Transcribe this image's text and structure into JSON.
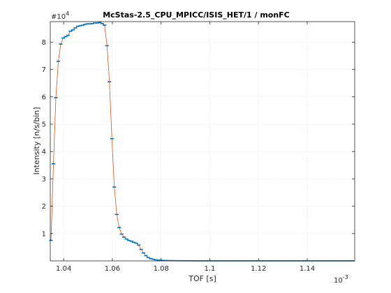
{
  "chart_data": {
    "type": "line",
    "title": "McStas-2.5_CPU_MPICC/ISIS_HET/1 / monFC",
    "xlabel": "TOF [s]",
    "ylabel": "Intensity [n/s/bin]",
    "x_exponent": "10",
    "x_exponent_power": "-3",
    "y_exponent": "#10",
    "y_exponent_power": "4",
    "xlim": [
      1.0345,
      1.1595
    ],
    "ylim": [
      0,
      8.75
    ],
    "x_ticks": [
      1.04,
      1.06,
      1.08,
      1.1,
      1.12,
      1.14
    ],
    "x_tick_labels": [
      "1.04",
      "1.06",
      "1.08",
      "1.1",
      "1.12",
      "1.14"
    ],
    "y_ticks": [
      1,
      2,
      3,
      4,
      5,
      6,
      7,
      8
    ],
    "y_tick_labels": [
      "1",
      "2",
      "3",
      "4",
      "5",
      "6",
      "7",
      "8"
    ],
    "grid": true,
    "colors": {
      "line": "#d95319",
      "markers": "#0072bd",
      "grid": "#dcdcdc"
    },
    "series": [
      {
        "x": [
          1.0348,
          1.0358,
          1.0368,
          1.0378,
          1.0388,
          1.0398,
          1.0408,
          1.0418,
          1.0428,
          1.0438,
          1.0448,
          1.0458,
          1.0468,
          1.0478,
          1.0488,
          1.0498,
          1.0508,
          1.0518,
          1.0528,
          1.0538,
          1.0548,
          1.0558,
          1.0568,
          1.0578,
          1.0588,
          1.0598,
          1.0608,
          1.0618,
          1.0628,
          1.0638,
          1.0648,
          1.0658,
          1.0668,
          1.0678,
          1.0688,
          1.0698,
          1.0708,
          1.0718,
          1.0728,
          1.0738,
          1.0748,
          1.0758,
          1.0768,
          1.0778,
          1.0788,
          1.0798,
          1.0808,
          1.0818,
          1.0828,
          1.0838,
          1.0848,
          1.0858,
          1.0868,
          1.0878,
          1.0888,
          1.0898,
          1.0908,
          1.0918,
          1.0928,
          1.0938,
          1.0948,
          1.0958,
          1.0968,
          1.0978,
          1.0988,
          1.0998,
          1.1008,
          1.1018,
          1.1028,
          1.1038,
          1.1048,
          1.1058,
          1.1068,
          1.1078,
          1.1088,
          1.1098,
          1.1108,
          1.1118,
          1.1128,
          1.1138,
          1.1148,
          1.1158,
          1.1168,
          1.1178,
          1.1188,
          1.1198,
          1.1208,
          1.1218,
          1.1228,
          1.1238,
          1.1248,
          1.1258,
          1.1268,
          1.1278,
          1.1288,
          1.1298,
          1.1308,
          1.1318,
          1.1328,
          1.1338,
          1.1348,
          1.1358,
          1.1368,
          1.1378,
          1.1388,
          1.1398,
          1.1408,
          1.1418,
          1.1428,
          1.1438,
          1.1448,
          1.1458,
          1.1468,
          1.1478,
          1.1488,
          1.1498,
          1.1508,
          1.1518,
          1.1528,
          1.1538,
          1.1548,
          1.1558,
          1.1568,
          1.1578,
          1.1588
        ],
        "y": [
          0.75,
          3.55,
          5.97,
          7.3,
          7.93,
          8.15,
          8.2,
          8.25,
          8.4,
          8.45,
          8.52,
          8.58,
          8.6,
          8.62,
          8.65,
          8.67,
          8.67,
          8.68,
          8.7,
          8.7,
          8.72,
          8.68,
          8.62,
          7.87,
          6.55,
          4.47,
          2.7,
          1.7,
          1.22,
          0.98,
          0.87,
          0.8,
          0.75,
          0.72,
          0.68,
          0.65,
          0.58,
          0.42,
          0.29,
          0.19,
          0.12,
          0.08,
          0.06,
          0.04,
          0.03,
          0.025,
          0.02,
          0.015,
          0.012,
          0.01,
          0.009,
          0.008,
          0.007,
          0.006,
          0.006,
          0.005,
          0.005,
          0.005,
          0.004,
          0.004,
          0.004,
          0.004,
          0.003,
          0.003,
          0.003,
          0.003,
          0.003,
          0.003,
          0.003,
          0.003,
          0.003,
          0.003,
          0.003,
          0.003,
          0.003,
          0.003,
          0.003,
          0.003,
          0.003,
          0.003,
          0.003,
          0.003,
          0.003,
          0.003,
          0.003,
          0.003,
          0.003,
          0.003,
          0.003,
          0.003,
          0.003,
          0.003,
          0.003,
          0.003,
          0.003,
          0.003,
          0.003,
          0.003,
          0.003,
          0.003,
          0.003,
          0.003,
          0.003,
          0.003,
          0.003,
          0.003,
          0.003,
          0.003,
          0.003,
          0.003,
          0.003,
          0.003,
          0.003,
          0.003,
          0.003,
          0.003,
          0.003,
          0.003,
          0.003,
          0.003,
          0.003,
          0.003,
          0.003,
          0.003,
          0.003
        ]
      }
    ]
  }
}
